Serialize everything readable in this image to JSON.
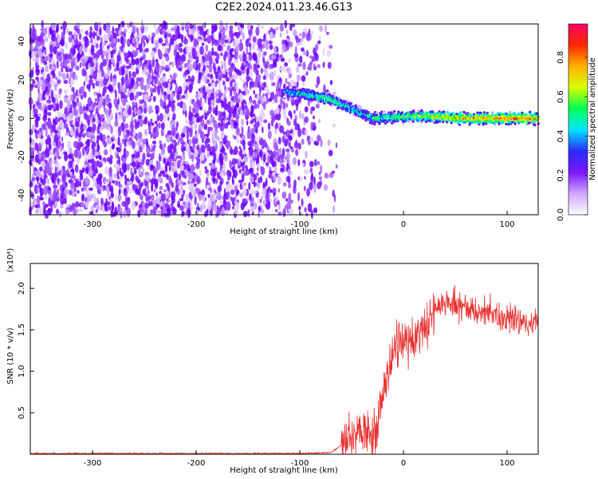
{
  "figure": {
    "title": "C2E2.2024.011.23.46.G13"
  },
  "chart_data": [
    {
      "type": "heatmap",
      "name": "spectrogram",
      "xlabel": "Height of straight line (km)",
      "ylabel": "Frequency (Hz)",
      "xlim": [
        -360,
        130
      ],
      "ylim": [
        -50,
        49
      ],
      "x_ticks": [
        -300,
        -200,
        -100,
        0,
        100
      ],
      "y_ticks": [
        -40,
        -20,
        0,
        20,
        40
      ],
      "colorbar": {
        "label": "Normalized spectral amplitude",
        "range": [
          0.0,
          0.97
        ],
        "ticks": [
          0.0,
          0.2,
          0.4,
          0.6,
          0.8
        ],
        "colormap": [
          "#ffffff",
          "#cfa6ff",
          "#7a16ff",
          "#2b2bff",
          "#00e5ff",
          "#00ff55",
          "#d8ff00",
          "#ffb000",
          "#ff2a00",
          "#ff0066"
        ]
      },
      "regions": [
        {
          "description": "broadband noise (purple speckle)",
          "x_range": [
            -360,
            -80
          ],
          "y_range": [
            -50,
            49
          ]
        },
        {
          "description": "signal band",
          "points": [
            {
              "x": -115,
              "center": 14,
              "amplitude": 0.45
            },
            {
              "x": -90,
              "center": 12,
              "amplitude": 0.55
            },
            {
              "x": -70,
              "center": 10,
              "amplitude": 0.6
            },
            {
              "x": -50,
              "center": 5,
              "amplitude": 0.5
            },
            {
              "x": -30,
              "center": 0,
              "amplitude": 0.55
            },
            {
              "x": 0,
              "center": 1,
              "amplitude": 0.6
            },
            {
              "x": 30,
              "center": 1,
              "amplitude": 0.7
            },
            {
              "x": 60,
              "center": 0,
              "amplitude": 0.8
            },
            {
              "x": 100,
              "center": 0,
              "amplitude": 0.85
            },
            {
              "x": 130,
              "center": 0,
              "amplitude": 0.85
            }
          ]
        }
      ]
    },
    {
      "type": "line",
      "name": "snr",
      "xlabel": "Height of straight line (km)",
      "ylabel": "SNR (10 * v/v)",
      "y_multiplier": "(x10⁴)",
      "xlim": [
        -360,
        130
      ],
      "ylim": [
        0,
        2.3
      ],
      "x_ticks": [
        -300,
        -200,
        -100,
        0,
        100
      ],
      "y_ticks": [
        0.5,
        1.0,
        1.5,
        2.0
      ],
      "color": "#e83030",
      "series": [
        {
          "values": [
            {
              "x": -360,
              "y": 0.01
            },
            {
              "x": -200,
              "y": 0.01
            },
            {
              "x": -100,
              "y": 0.01
            },
            {
              "x": -70,
              "y": 0.02
            },
            {
              "x": -50,
              "y": 0.2
            },
            {
              "x": -40,
              "y": 0.25
            },
            {
              "x": -30,
              "y": 0.2
            },
            {
              "x": -25,
              "y": 0.4
            },
            {
              "x": -20,
              "y": 0.8
            },
            {
              "x": -15,
              "y": 1.0
            },
            {
              "x": -10,
              "y": 1.25
            },
            {
              "x": -5,
              "y": 1.35
            },
            {
              "x": 0,
              "y": 1.3
            },
            {
              "x": 10,
              "y": 1.4
            },
            {
              "x": 20,
              "y": 1.55
            },
            {
              "x": 30,
              "y": 1.7
            },
            {
              "x": 40,
              "y": 1.85
            },
            {
              "x": 50,
              "y": 1.8
            },
            {
              "x": 60,
              "y": 1.75
            },
            {
              "x": 80,
              "y": 1.7
            },
            {
              "x": 100,
              "y": 1.65
            },
            {
              "x": 115,
              "y": 1.6
            },
            {
              "x": 130,
              "y": 1.55
            }
          ]
        }
      ]
    }
  ]
}
